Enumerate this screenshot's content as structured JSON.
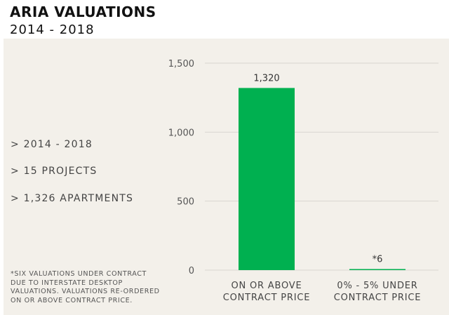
{
  "header": {
    "title": "ARIA VALUATIONS",
    "subtitle": "2014 - 2018"
  },
  "summary": {
    "bullets": [
      "> 2014 - 2018",
      "> 15 PROJECTS",
      "> 1,326 APARTMENTS"
    ],
    "footnote": "*SIX VALUATIONS UNDER CONTRACT\nDUE TO INTERSTATE DESKTOP\nVALUATIONS. VALUATIONS RE-ORDERED\nON OR ABOVE CONTRACT PRICE."
  },
  "colors": {
    "bar": "#00b050",
    "panel_background": "#f3f0ea",
    "gridline": "#d9d6d0"
  },
  "chart_data": {
    "type": "bar",
    "categories": [
      [
        "ON OR ABOVE",
        "CONTRACT PRICE"
      ],
      [
        "0% - 5% UNDER",
        "CONTRACT PRICE"
      ]
    ],
    "values": [
      1320,
      6
    ],
    "data_labels": [
      "1,320",
      "*6"
    ],
    "ylim": [
      0,
      1500
    ],
    "yticks": [
      0,
      500,
      1000,
      1500
    ],
    "ytick_labels": [
      "0",
      "500",
      "1,000",
      "1,500"
    ],
    "grid": true,
    "legend": "none"
  }
}
